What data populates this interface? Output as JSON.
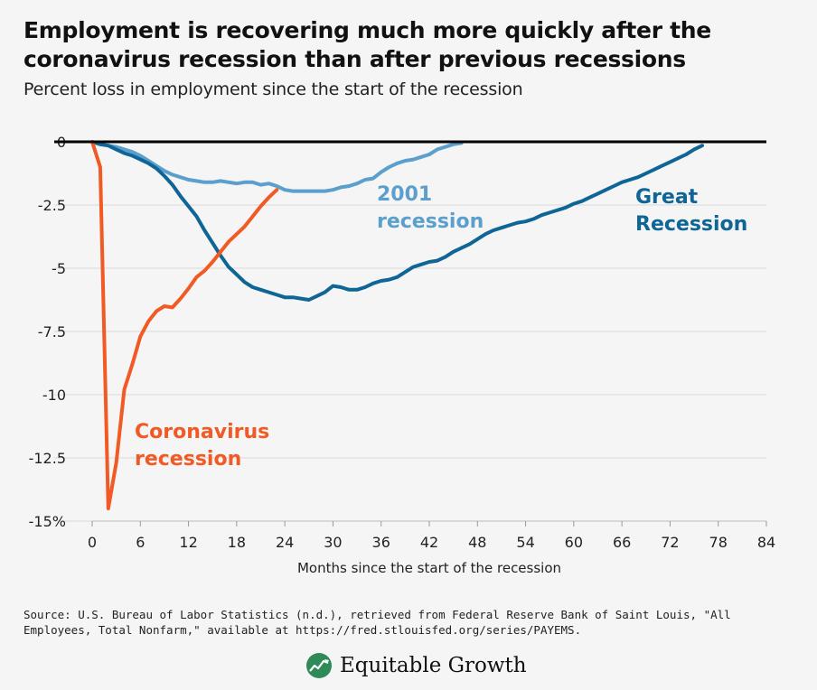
{
  "header": {
    "title": "Employment is recovering much more quickly after the coronavirus recession than after previous recessions",
    "subtitle": "Percent loss in employment since the start of the recession"
  },
  "footer": {
    "source": "Source: U.S. Bureau of Labor Statistics (n.d.), retrieved from Federal Reserve Bank of Saint Louis, \"All Employees, Total Nonfarm,\" available at https://fred.stlouisfed.org/series/PAYEMS.",
    "logo_text": "Equitable Growth"
  },
  "colors": {
    "coronavirus": "#f15a24",
    "great_recession": "#0f6696",
    "recession_2001": "#5b9fcc",
    "zero_line": "#000000",
    "grid": "#d9d9d9"
  },
  "chart_data": {
    "type": "line",
    "xlabel": "Months since the start of the recession",
    "ylabel": "",
    "xlim": [
      0,
      84
    ],
    "ylim": [
      -15,
      0
    ],
    "xticks": [
      0,
      6,
      12,
      18,
      24,
      30,
      36,
      42,
      48,
      54,
      60,
      66,
      72,
      78,
      84
    ],
    "yticks": [
      0,
      -2.5,
      -5,
      -7.5,
      -10,
      -12.5,
      -15
    ],
    "ytick_labels": [
      "0",
      "-2.5",
      "-5",
      "-7.5",
      "-10",
      "-12.5",
      "-15%"
    ],
    "grid": "horizontal",
    "series": [
      {
        "name": "2001 recession",
        "key": "recession_2001",
        "label_lines": [
          "2001",
          "recession"
        ],
        "x": [
          0,
          1,
          2,
          3,
          4,
          5,
          6,
          7,
          8,
          9,
          10,
          11,
          12,
          13,
          14,
          15,
          16,
          17,
          18,
          19,
          20,
          21,
          22,
          23,
          24,
          25,
          26,
          27,
          28,
          29,
          30,
          31,
          32,
          33,
          34,
          35,
          36,
          37,
          38,
          39,
          40,
          41,
          42,
          43,
          44,
          45,
          46
        ],
        "y": [
          0,
          -0.1,
          -0.15,
          -0.2,
          -0.3,
          -0.4,
          -0.55,
          -0.75,
          -0.95,
          -1.15,
          -1.3,
          -1.4,
          -1.5,
          -1.55,
          -1.6,
          -1.6,
          -1.55,
          -1.6,
          -1.65,
          -1.6,
          -1.6,
          -1.7,
          -1.65,
          -1.75,
          -1.9,
          -1.95,
          -1.95,
          -1.95,
          -1.95,
          -1.95,
          -1.9,
          -1.8,
          -1.75,
          -1.65,
          -1.5,
          -1.45,
          -1.2,
          -1.0,
          -0.85,
          -0.75,
          -0.7,
          -0.6,
          -0.5,
          -0.3,
          -0.2,
          -0.1,
          -0.05
        ]
      },
      {
        "name": "Great Recession",
        "key": "great_recession",
        "label_lines": [
          "Great",
          "Recession"
        ],
        "x": [
          0,
          1,
          2,
          3,
          4,
          5,
          6,
          7,
          8,
          9,
          10,
          11,
          12,
          13,
          14,
          15,
          16,
          17,
          18,
          19,
          20,
          21,
          22,
          23,
          24,
          25,
          26,
          27,
          28,
          29,
          30,
          31,
          32,
          33,
          34,
          35,
          36,
          37,
          38,
          39,
          40,
          41,
          42,
          43,
          44,
          45,
          46,
          47,
          48,
          49,
          50,
          51,
          52,
          53,
          54,
          55,
          56,
          57,
          58,
          59,
          60,
          61,
          62,
          63,
          64,
          65,
          66,
          67,
          68,
          69,
          70,
          71,
          72,
          73,
          74,
          75,
          76
        ],
        "y": [
          0,
          -0.1,
          -0.15,
          -0.3,
          -0.45,
          -0.55,
          -0.7,
          -0.85,
          -1.05,
          -1.35,
          -1.7,
          -2.15,
          -2.55,
          -2.95,
          -3.5,
          -4.0,
          -4.5,
          -4.95,
          -5.25,
          -5.55,
          -5.75,
          -5.85,
          -5.95,
          -6.05,
          -6.15,
          -6.15,
          -6.2,
          -6.25,
          -6.1,
          -5.95,
          -5.7,
          -5.75,
          -5.85,
          -5.85,
          -5.75,
          -5.6,
          -5.5,
          -5.45,
          -5.35,
          -5.15,
          -4.95,
          -4.85,
          -4.75,
          -4.7,
          -4.55,
          -4.35,
          -4.2,
          -4.05,
          -3.85,
          -3.65,
          -3.5,
          -3.4,
          -3.3,
          -3.2,
          -3.15,
          -3.05,
          -2.9,
          -2.8,
          -2.7,
          -2.6,
          -2.45,
          -2.35,
          -2.2,
          -2.05,
          -1.9,
          -1.75,
          -1.6,
          -1.5,
          -1.4,
          -1.25,
          -1.1,
          -0.95,
          -0.8,
          -0.65,
          -0.5,
          -0.3,
          -0.15
        ]
      },
      {
        "name": "Coronavirus recession",
        "key": "coronavirus",
        "label_lines": [
          "Coronavirus",
          "recession"
        ],
        "x": [
          0,
          1,
          2,
          3,
          4,
          5,
          6,
          7,
          8,
          9,
          10,
          11,
          12,
          13,
          14,
          15,
          16,
          17,
          18,
          19,
          20,
          21,
          22,
          23
        ],
        "y": [
          0,
          -1.0,
          -14.5,
          -12.7,
          -9.8,
          -8.8,
          -7.7,
          -7.1,
          -6.7,
          -6.5,
          -6.55,
          -6.2,
          -5.8,
          -5.35,
          -5.1,
          -4.75,
          -4.35,
          -3.95,
          -3.65,
          -3.35,
          -2.95,
          -2.55,
          -2.2,
          -1.9
        ]
      }
    ]
  }
}
